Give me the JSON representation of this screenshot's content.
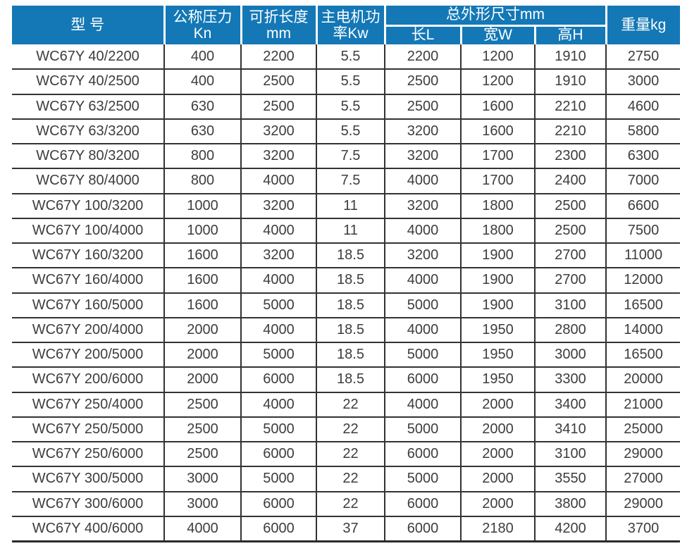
{
  "colors": {
    "header_bg": "#1478b6",
    "header_text": "#ffffff",
    "body_text": "#3d3d3d",
    "grid_line": "#333333"
  },
  "table": {
    "header": {
      "model": "型 号",
      "pressure_line1": "公称压力",
      "pressure_line2": "Kn",
      "fold_length_line1": "可折长度",
      "fold_length_line2": "mm",
      "motor_line1": "主电机功",
      "motor_line2": "率Kw",
      "dims_group": "总外形尺寸mm",
      "dim_length": "长L",
      "dim_width": "宽W",
      "dim_height": "高H",
      "weight": "重量kg"
    },
    "column_cell_names": [
      "model-cell",
      "nominal-pressure-cell",
      "fold-length-cell",
      "motor-power-cell",
      "overall-length-cell",
      "overall-width-cell",
      "overall-height-cell",
      "weight-cell"
    ],
    "rows": [
      [
        "WC67Y 40/2200",
        "400",
        "2200",
        "5.5",
        "2200",
        "1200",
        "1910",
        "2750"
      ],
      [
        "WC67Y 40/2500",
        "400",
        "2500",
        "5.5",
        "2500",
        "1200",
        "1910",
        "3000"
      ],
      [
        "WC67Y 63/2500",
        "630",
        "2500",
        "5.5",
        "2500",
        "1600",
        "2210",
        "4600"
      ],
      [
        "WC67Y 63/3200",
        "630",
        "3200",
        "5.5",
        "3200",
        "1600",
        "2210",
        "5800"
      ],
      [
        "WC67Y 80/3200",
        "800",
        "3200",
        "7.5",
        "3200",
        "1700",
        "2300",
        "6300"
      ],
      [
        "WC67Y 80/4000",
        "800",
        "4000",
        "7.5",
        "4000",
        "1700",
        "2400",
        "7000"
      ],
      [
        "WC67Y 100/3200",
        "1000",
        "3200",
        "11",
        "3200",
        "1800",
        "2500",
        "6600"
      ],
      [
        "WC67Y 100/4000",
        "1000",
        "4000",
        "11",
        "4000",
        "1800",
        "2500",
        "7500"
      ],
      [
        "WC67Y 160/3200",
        "1600",
        "3200",
        "18.5",
        "3200",
        "1900",
        "2700",
        "11000"
      ],
      [
        "WC67Y 160/4000",
        "1600",
        "4000",
        "18.5",
        "4000",
        "1900",
        "2700",
        "12000"
      ],
      [
        "WC67Y 160/5000",
        "1600",
        "5000",
        "18.5",
        "5000",
        "1900",
        "3100",
        "16500"
      ],
      [
        "WC67Y 200/4000",
        "2000",
        "4000",
        "18.5",
        "4000",
        "1950",
        "2800",
        "14000"
      ],
      [
        "WC67Y 200/5000",
        "2000",
        "5000",
        "18.5",
        "5000",
        "1950",
        "3000",
        "16500"
      ],
      [
        "WC67Y 200/6000",
        "2000",
        "6000",
        "18.5",
        "6000",
        "1950",
        "3300",
        "20000"
      ],
      [
        "WC67Y 250/4000",
        "2500",
        "4000",
        "22",
        "4000",
        "2000",
        "3400",
        "21000"
      ],
      [
        "WC67Y 250/5000",
        "2500",
        "5000",
        "22",
        "5000",
        "2000",
        "3410",
        "25000"
      ],
      [
        "WC67Y 250/6000",
        "2500",
        "6000",
        "22",
        "6000",
        "2000",
        "3100",
        "29000"
      ],
      [
        "WC67Y 300/5000",
        "3000",
        "5000",
        "22",
        "5000",
        "2000",
        "3550",
        "27000"
      ],
      [
        "WC67Y 300/6000",
        "3000",
        "6000",
        "22",
        "6000",
        "2000",
        "3800",
        "29000"
      ],
      [
        "WC67Y 400/6000",
        "4000",
        "6000",
        "37",
        "6000",
        "2180",
        "4200",
        "3700"
      ]
    ]
  }
}
